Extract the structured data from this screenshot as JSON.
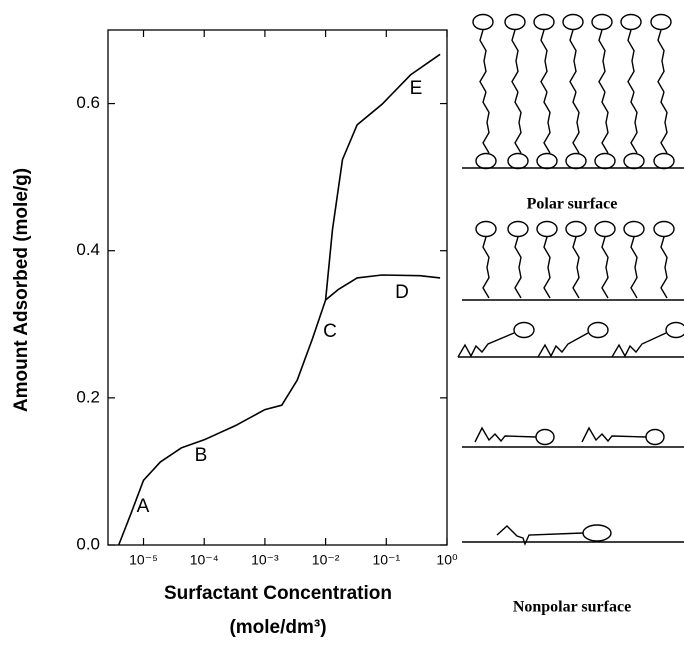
{
  "chart_data": {
    "type": "line",
    "x_label": [
      "Surfactant Concentration",
      "(mole/dm³)"
    ],
    "y_label": "Amount Adsorbed (mole/g)",
    "log_x": true,
    "color": "#000000",
    "xlim": [
      2.6e-06,
      1
    ],
    "ylim": [
      0,
      0.7
    ],
    "xticks": [
      {
        "value": 1e-05,
        "label": "10⁻⁵"
      },
      {
        "value": 0.0001,
        "label": "10⁻⁴"
      },
      {
        "value": 0.001,
        "label": "10⁻³"
      },
      {
        "value": 0.01,
        "label": "10⁻²"
      },
      {
        "value": 0.1,
        "label": "10⁻¹"
      },
      {
        "value": 1,
        "label": "10⁰"
      }
    ],
    "yticks": [
      {
        "value": 0,
        "label": "0.0"
      },
      0.2,
      0.4,
      0.6
    ],
    "series": [
      {
        "x": [
          3.9e-06,
          6.1e-06,
          1e-05,
          1.9e-05,
          4.2e-05,
          0.0001,
          0.00034,
          0.001,
          0.0019,
          0.0034,
          0.006,
          0.01,
          0.013,
          0.019,
          0.033,
          0.085,
          0.25,
          0.77
        ],
        "values": [
          0,
          0.041,
          0.088,
          0.113,
          0.132,
          0.143,
          0.163,
          0.184,
          0.19,
          0.224,
          0.279,
          0.333,
          0.429,
          0.524,
          0.571,
          0.599,
          0.639,
          0.667
        ]
      },
      {
        "x": [
          0.01,
          0.016,
          0.033,
          0.085,
          0.36,
          0.77
        ],
        "values": [
          0.333,
          0.347,
          0.363,
          0.367,
          0.366,
          0.363
        ]
      }
    ],
    "annotations": [
      "A",
      "B",
      "C",
      "D",
      "E"
    ]
  },
  "diagram": {
    "polar_label": "Polar surface",
    "nonpolar_label": "Nonpolar surface"
  }
}
